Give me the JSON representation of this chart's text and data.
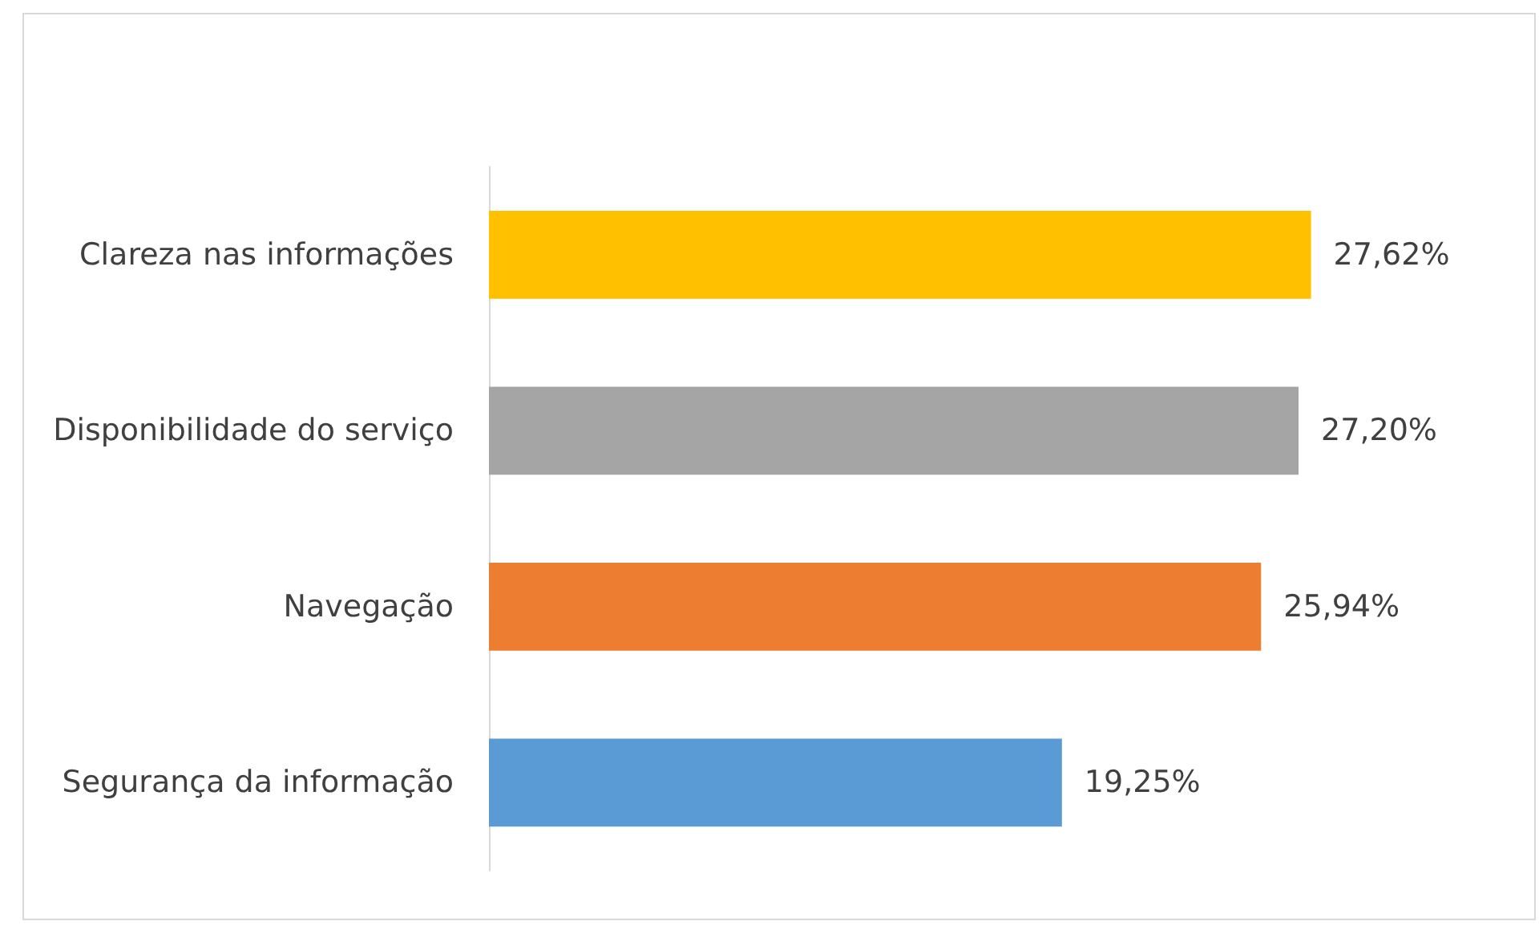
{
  "chart_data": {
    "type": "bar",
    "orientation": "horizontal",
    "categories": [
      "Clareza nas informações",
      "Disponibilidade do serviço",
      "Navegação",
      "Segurança da informação"
    ],
    "values": [
      27.62,
      27.2,
      25.94,
      19.25
    ],
    "colors": [
      "#ffc000",
      "#a5a5a5",
      "#ed7d31",
      "#5b9bd5"
    ],
    "value_labels": [
      "27,62%",
      "27,20%",
      "25,94%",
      "19,25%"
    ]
  }
}
